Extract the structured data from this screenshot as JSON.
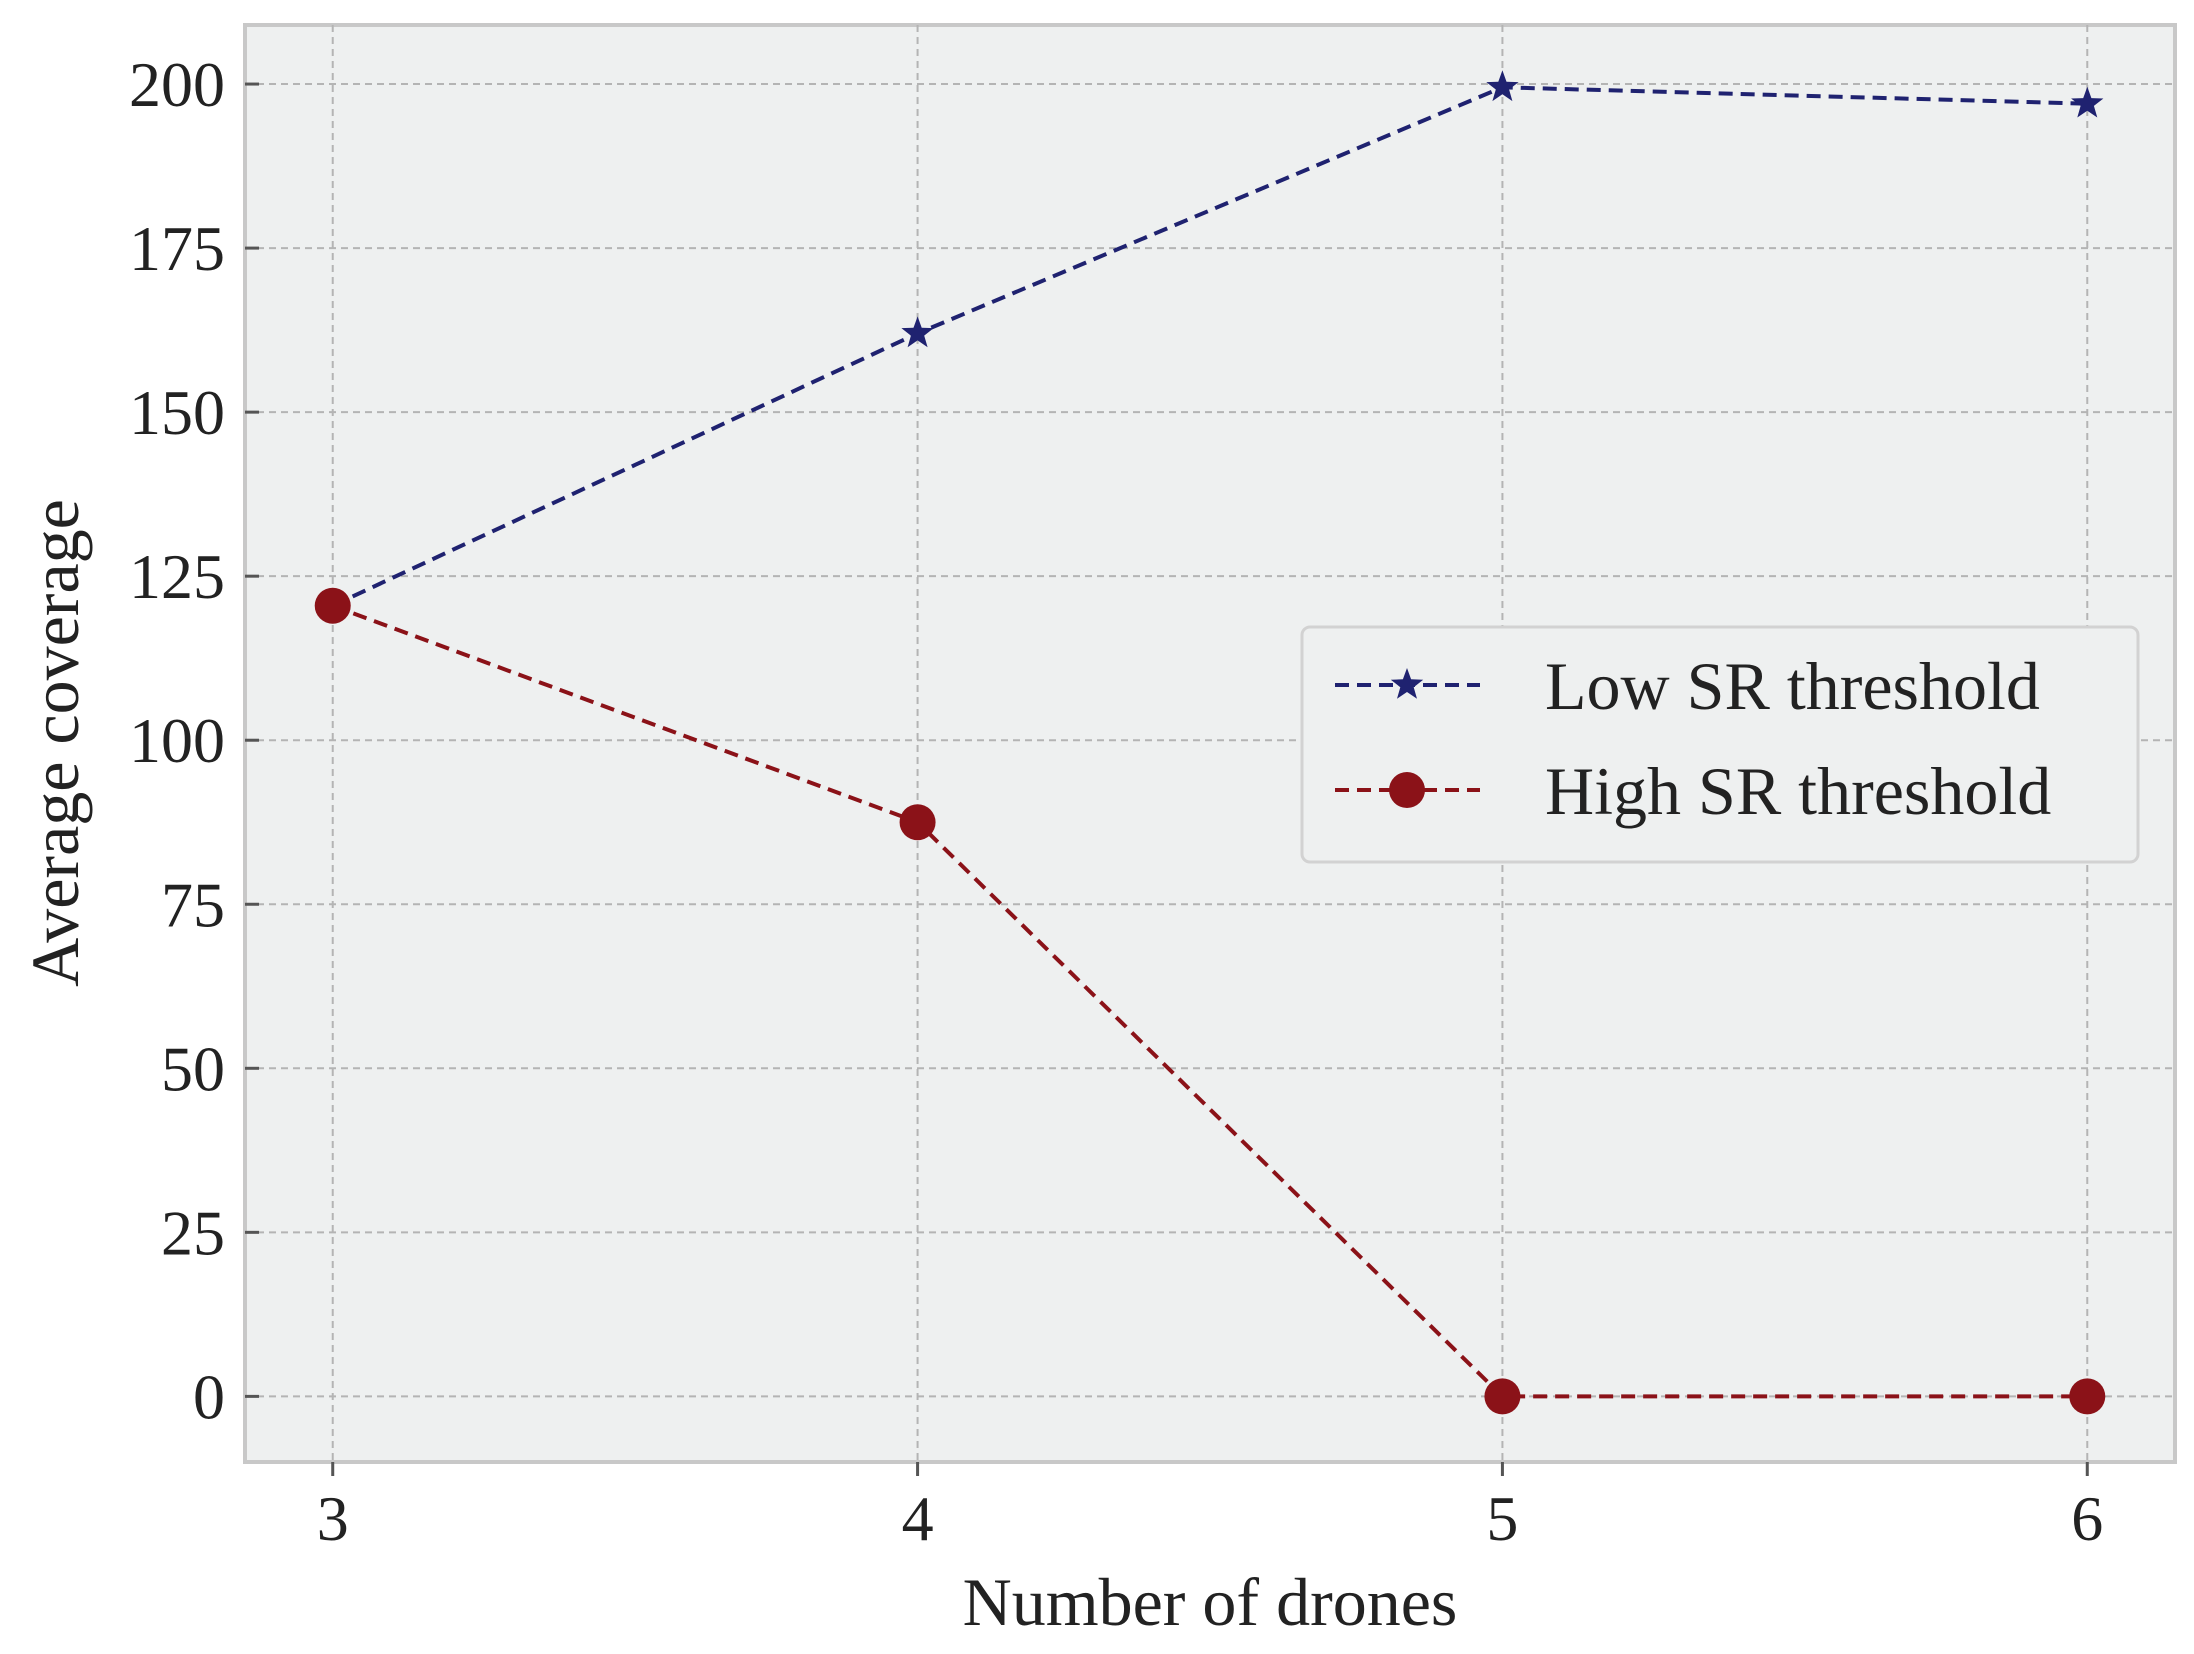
{
  "chart_data": {
    "type": "line",
    "title": "",
    "xlabel": "Number of drones",
    "ylabel": "Average coverage",
    "x": [
      3,
      4,
      5,
      6
    ],
    "xlim": [
      2.85,
      6.15
    ],
    "ylim": [
      -10,
      209
    ],
    "xticks": [
      "3",
      "4",
      "5",
      "6"
    ],
    "yticks": [
      "0",
      "25",
      "50",
      "75",
      "100",
      "125",
      "150",
      "175",
      "200"
    ],
    "grid": true,
    "legend_position": "center-right",
    "series": [
      {
        "name": "Low SR threshold",
        "values": [
          120.5,
          162,
          199.5,
          197
        ],
        "color": "#1f2270",
        "marker": "star",
        "linestyle": "dashed"
      },
      {
        "name": "High SR threshold",
        "values": [
          120.5,
          87.5,
          0,
          0
        ],
        "color": "#8b1218",
        "marker": "circle",
        "linestyle": "dashed"
      }
    ]
  }
}
